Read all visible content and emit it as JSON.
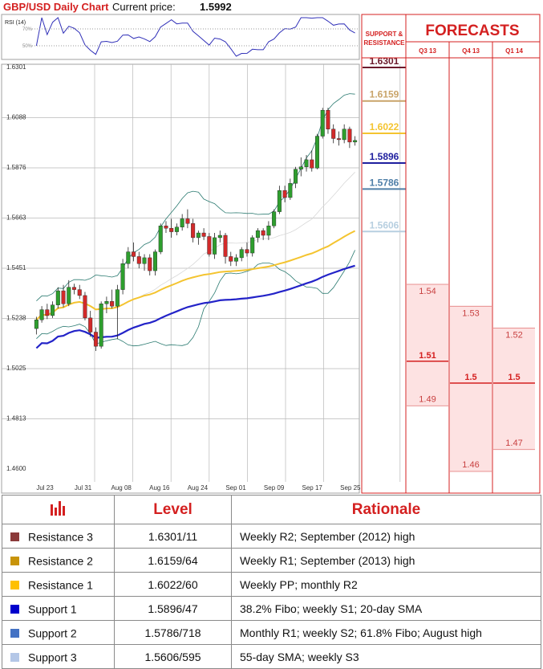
{
  "header": {
    "title": "GBP/USD Daily Chart",
    "price_label": "Current price:",
    "price_value": "1.5992"
  },
  "rsi": {
    "label": "RSI (14)",
    "levels": [
      "70%",
      "50%"
    ]
  },
  "chart_data": {
    "type": "candlestick",
    "ylim": [
      1.46,
      1.6301
    ],
    "y_ticks": [
      "1.6301",
      "1.6088",
      "1.5876",
      "1.5663",
      "1.5451",
      "1.5238",
      "1.5025",
      "1.4813",
      "1.4600"
    ],
    "x_ticks": [
      "Jul 23",
      "Jul 31",
      "Aug 08",
      "Aug 16",
      "Aug 24",
      "Sep 01",
      "Sep 09",
      "Sep 17",
      "Sep 25"
    ],
    "candles": [
      [
        1.5195,
        1.5245,
        1.517,
        1.5232
      ],
      [
        1.5232,
        1.529,
        1.522,
        1.5275
      ],
      [
        1.5275,
        1.53,
        1.5235,
        1.525
      ],
      [
        1.525,
        1.531,
        1.524,
        1.5295
      ],
      [
        1.5295,
        1.537,
        1.528,
        1.5355
      ],
      [
        1.5355,
        1.538,
        1.5285,
        1.53
      ],
      [
        1.53,
        1.54,
        1.529,
        1.537
      ],
      [
        1.537,
        1.5385,
        1.534,
        1.536
      ],
      [
        1.536,
        1.538,
        1.532,
        1.5335
      ],
      [
        1.5335,
        1.535,
        1.523,
        1.524
      ],
      [
        1.524,
        1.527,
        1.516,
        1.518
      ],
      [
        1.518,
        1.52,
        1.51,
        1.512
      ],
      [
        1.512,
        1.531,
        1.511,
        1.53
      ],
      [
        1.53,
        1.533,
        1.526,
        1.531
      ],
      [
        1.531,
        1.536,
        1.528,
        1.529
      ],
      [
        1.529,
        1.538,
        1.515,
        1.536
      ],
      [
        1.536,
        1.549,
        1.534,
        1.547
      ],
      [
        1.547,
        1.554,
        1.545,
        1.552
      ],
      [
        1.552,
        1.556,
        1.548,
        1.55
      ],
      [
        1.55,
        1.552,
        1.545,
        1.547
      ],
      [
        1.547,
        1.551,
        1.544,
        1.5495
      ],
      [
        1.5495,
        1.551,
        1.542,
        1.544
      ],
      [
        1.544,
        1.553,
        1.542,
        1.552
      ],
      [
        1.552,
        1.564,
        1.551,
        1.563
      ],
      [
        1.563,
        1.565,
        1.56,
        1.562
      ],
      [
        1.562,
        1.566,
        1.558,
        1.5605
      ],
      [
        1.5605,
        1.564,
        1.559,
        1.5625
      ],
      [
        1.5625,
        1.568,
        1.561,
        1.566
      ],
      [
        1.566,
        1.57,
        1.562,
        1.564
      ],
      [
        1.564,
        1.566,
        1.556,
        1.558
      ],
      [
        1.558,
        1.561,
        1.555,
        1.56
      ],
      [
        1.56,
        1.562,
        1.557,
        1.5585
      ],
      [
        1.5585,
        1.56,
        1.55,
        1.551
      ],
      [
        1.551,
        1.56,
        1.549,
        1.558
      ],
      [
        1.558,
        1.561,
        1.556,
        1.559
      ],
      [
        1.559,
        1.56,
        1.547,
        1.55
      ],
      [
        1.55,
        1.552,
        1.546,
        1.548
      ],
      [
        1.548,
        1.551,
        1.546,
        1.5495
      ],
      [
        1.5495,
        1.554,
        1.548,
        1.553
      ],
      [
        1.553,
        1.556,
        1.55,
        1.5515
      ],
      [
        1.5515,
        1.559,
        1.55,
        1.558
      ],
      [
        1.558,
        1.562,
        1.556,
        1.561
      ],
      [
        1.561,
        1.562,
        1.557,
        1.559
      ],
      [
        1.559,
        1.565,
        1.557,
        1.563
      ],
      [
        1.563,
        1.57,
        1.562,
        1.569
      ],
      [
        1.569,
        1.58,
        1.568,
        1.578
      ],
      [
        1.578,
        1.58,
        1.573,
        1.575
      ],
      [
        1.575,
        1.583,
        1.574,
        1.581
      ],
      [
        1.581,
        1.588,
        1.579,
        1.587
      ],
      [
        1.587,
        1.592,
        1.584,
        1.588
      ],
      [
        1.588,
        1.593,
        1.586,
        1.591
      ],
      [
        1.591,
        1.595,
        1.586,
        1.5875
      ],
      [
        1.5875,
        1.602,
        1.587,
        1.601
      ],
      [
        1.601,
        1.613,
        1.6,
        1.612
      ],
      [
        1.612,
        1.613,
        1.602,
        1.604
      ],
      [
        1.604,
        1.606,
        1.598,
        1.6
      ],
      [
        1.6,
        1.603,
        1.597,
        1.5995
      ],
      [
        1.5995,
        1.606,
        1.598,
        1.604
      ],
      [
        1.604,
        1.605,
        1.596,
        1.5985
      ],
      [
        1.5985,
        1.601,
        1.597,
        1.5992
      ]
    ],
    "resistance_support_levels": [
      {
        "name": "Resistance 3",
        "value": 1.6301,
        "label": "1.6301",
        "color": "#6b1a2c"
      },
      {
        "name": "Resistance 2",
        "value": 1.6159,
        "label": "1.6159",
        "color": "#c9a46a"
      },
      {
        "name": "Resistance 1",
        "value": 1.6022,
        "label": "1.6022",
        "color": "#f4c430"
      },
      {
        "name": "Support 1",
        "value": 1.5896,
        "label": "1.5896",
        "color": "#1f1f9e"
      },
      {
        "name": "Support 2",
        "value": 1.5786,
        "label": "1.5786",
        "color": "#4f7fa8"
      },
      {
        "name": "Support 3",
        "value": 1.5606,
        "label": "1.5606",
        "color": "#b7cfe0"
      }
    ],
    "panel_titles": {
      "support_resistance": [
        "SUPPORT &",
        "RESISTANCE"
      ],
      "forecasts": "FORECASTS"
    },
    "forecasts": [
      {
        "period": "Q3 13",
        "high": 1.54,
        "mid": 1.51,
        "low": 1.49,
        "high_label": "1.54",
        "mid_label": "1.51",
        "low_label": "1.49"
      },
      {
        "period": "Q4 13",
        "high": 1.53,
        "mid": 1.5,
        "low": 1.46,
        "high_label": "1.53",
        "mid_label": "1.5",
        "low_label": "1.46"
      },
      {
        "period": "Q1 14",
        "high": 1.52,
        "mid": 1.5,
        "low": 1.47,
        "high_label": "1.52",
        "mid_label": "1.5",
        "low_label": "1.47"
      }
    ]
  },
  "table": {
    "headers": [
      "Level",
      "Rationale"
    ],
    "rows": [
      {
        "name": "Resistance 3",
        "level": "1.6301/11",
        "rationale": "Weekly R2; September (2012) high",
        "color": "#8b3a3a"
      },
      {
        "name": "Resistance 2",
        "level": "1.6159/64",
        "rationale": "Weekly R1; September (2013) high",
        "color": "#c8940a"
      },
      {
        "name": "Resistance 1",
        "level": "1.6022/60",
        "rationale": "Weekly PP; monthly R2",
        "color": "#ffc000"
      },
      {
        "name": "Support 1",
        "level": "1.5896/47",
        "rationale": "38.2% Fibo; weekly S1; 20-day SMA",
        "color": "#0000cc"
      },
      {
        "name": "Support 2",
        "level": "1.5786/718",
        "rationale": "Monthly R1; weekly S2; 61.8% Fibo; August high",
        "color": "#4472c4"
      },
      {
        "name": "Support 3",
        "level": "1.5606/595",
        "rationale": "55-day SMA; weekly S3",
        "color": "#b4c7e7"
      }
    ]
  }
}
